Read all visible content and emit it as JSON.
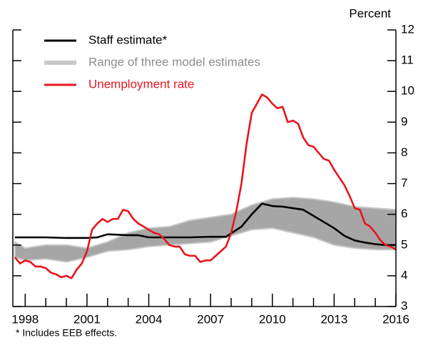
{
  "chart_data": {
    "type": "line",
    "y_axis_label": "Percent",
    "footnote": "* Includes EEB effects.",
    "xlim": [
      1997.4,
      2016
    ],
    "xticks": [
      1998,
      2001,
      2004,
      2007,
      2010,
      2013,
      2016
    ],
    "xminor_ticks": [
      1999,
      2000,
      2002,
      2003,
      2005,
      2006,
      2008,
      2009,
      2011,
      2012,
      2014,
      2015
    ],
    "ylim": [
      3,
      12
    ],
    "yticks": [
      3,
      4,
      5,
      6,
      7,
      8,
      9,
      10,
      11,
      12
    ],
    "legend": "upper left",
    "series": [
      {
        "name": "Staff estimate*",
        "color": "#000000",
        "x": [
          1997.5,
          1998,
          1999,
          2000,
          2001,
          2001.5,
          2002,
          2003,
          2003.5,
          2004,
          2005,
          2006,
          2007,
          2007.75,
          2008.5,
          2009,
          2009.5,
          2010,
          2010.5,
          2011,
          2011.5,
          2012,
          2012.5,
          2013,
          2013.5,
          2014,
          2014.5,
          2015,
          2015.5,
          2016
        ],
        "values": [
          5.25,
          5.25,
          5.25,
          5.23,
          5.23,
          5.25,
          5.35,
          5.32,
          5.32,
          5.25,
          5.25,
          5.25,
          5.27,
          5.27,
          5.6,
          6.0,
          6.35,
          6.27,
          6.25,
          6.2,
          6.15,
          5.95,
          5.75,
          5.55,
          5.3,
          5.15,
          5.08,
          5.03,
          5.0,
          5.0
        ]
      },
      {
        "name": "Range of three model estimates",
        "color": "#a6a6a6",
        "band": true,
        "x": [
          1997.5,
          1998,
          1999,
          2000,
          2001,
          2002,
          2003,
          2004,
          2005,
          2006,
          2007,
          2008,
          2009,
          2010,
          2011,
          2012,
          2013,
          2014,
          2015,
          2016
        ],
        "upper": [
          5.1,
          4.9,
          5.0,
          5.0,
          4.9,
          5.1,
          5.4,
          5.55,
          5.6,
          5.8,
          5.9,
          6.0,
          6.3,
          6.5,
          6.55,
          6.5,
          6.4,
          6.25,
          6.2,
          6.15
        ],
        "lower": [
          4.6,
          4.5,
          4.55,
          4.45,
          4.6,
          4.8,
          4.85,
          4.95,
          5.0,
          5.05,
          5.1,
          5.3,
          5.5,
          5.55,
          5.4,
          5.25,
          5.0,
          4.9,
          4.85,
          4.85
        ]
      },
      {
        "name": "Unemployment rate",
        "color": "#e8141c",
        "x": [
          1997.5,
          1997.75,
          1998,
          1998.25,
          1998.5,
          1998.75,
          1999,
          1999.25,
          1999.5,
          1999.75,
          2000,
          2000.25,
          2000.5,
          2000.75,
          2001,
          2001.25,
          2001.5,
          2001.75,
          2002,
          2002.25,
          2002.5,
          2002.75,
          2003,
          2003.25,
          2003.5,
          2003.75,
          2004,
          2004.25,
          2004.5,
          2004.75,
          2005,
          2005.25,
          2005.5,
          2005.75,
          2006,
          2006.25,
          2006.5,
          2006.75,
          2007,
          2007.25,
          2007.5,
          2007.75,
          2008,
          2008.25,
          2008.5,
          2008.75,
          2009,
          2009.25,
          2009.5,
          2009.75,
          2010,
          2010.25,
          2010.5,
          2010.75,
          2011,
          2011.25,
          2011.5,
          2011.75,
          2012,
          2012.25,
          2012.5,
          2012.75,
          2013,
          2013.25,
          2013.5,
          2013.75,
          2014,
          2014.25,
          2014.5,
          2014.75,
          2015,
          2015.25,
          2015.5,
          2015.75,
          2016
        ],
        "values": [
          4.6,
          4.4,
          4.5,
          4.45,
          4.3,
          4.3,
          4.25,
          4.1,
          4.05,
          3.95,
          4.0,
          3.92,
          4.2,
          4.4,
          4.8,
          5.5,
          5.7,
          5.85,
          5.75,
          5.85,
          5.85,
          6.15,
          6.1,
          5.85,
          5.7,
          5.6,
          5.5,
          5.4,
          5.35,
          5.2,
          5.0,
          4.95,
          4.95,
          4.7,
          4.65,
          4.65,
          4.45,
          4.5,
          4.5,
          4.65,
          4.8,
          4.95,
          5.4,
          6.1,
          7.0,
          8.3,
          9.3,
          9.6,
          9.9,
          9.8,
          9.6,
          9.45,
          9.5,
          9.0,
          9.05,
          8.95,
          8.5,
          8.25,
          8.2,
          8.0,
          7.8,
          7.75,
          7.45,
          7.2,
          6.95,
          6.6,
          6.2,
          6.15,
          5.7,
          5.6,
          5.4,
          5.15,
          5.0,
          4.95,
          4.85
        ]
      }
    ]
  }
}
